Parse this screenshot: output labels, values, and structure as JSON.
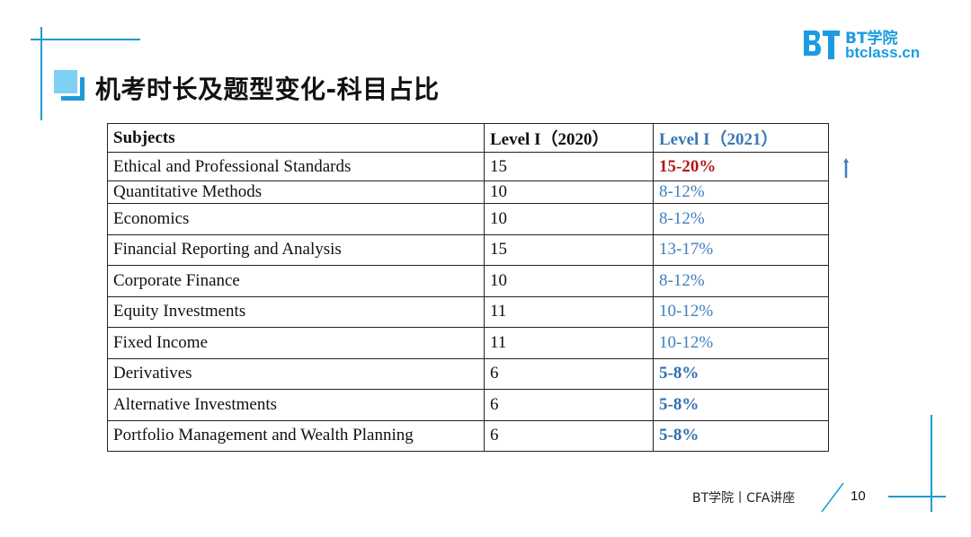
{
  "title": "机考时长及题型变化-科目占比",
  "logo": {
    "name_cn": "BT学院",
    "domain": "btclass.cn"
  },
  "table": {
    "headers": [
      "Subjects",
      "Level I（2020）",
      "Level I（2021）"
    ],
    "rows": [
      {
        "subject": "Ethical and Professional Standards",
        "y2020": "15",
        "y2021": "15-20%"
      },
      {
        "subject": "Quantitative Methods",
        "y2020": "10",
        "y2021": "8-12%"
      },
      {
        "subject": "Economics",
        "y2020": "10",
        "y2021": "8-12%"
      },
      {
        "subject": "Financial Reporting and Analysis",
        "y2020": "15",
        "y2021": "13-17%"
      },
      {
        "subject": "Corporate Finance",
        "y2020": "10",
        "y2021": "8-12%"
      },
      {
        "subject": "Equity Investments",
        "y2020": "11",
        "y2021": "10-12%"
      },
      {
        "subject": "Fixed Income",
        "y2020": "11",
        "y2021": "10-12%"
      },
      {
        "subject": "Derivatives",
        "y2020": "6",
        "y2021": "5-8%"
      },
      {
        "subject": "Alternative Investments",
        "y2020": "6",
        "y2021": "5-8%"
      },
      {
        "subject": "Portfolio Management and Wealth Planning",
        "y2020": "6",
        "y2021": "5-8%"
      }
    ]
  },
  "indicator_icon": "up-arrow-icon",
  "footer": {
    "text": "BT学院丨CFA讲座",
    "page_number": "10"
  },
  "colors": {
    "accent": "#1f9ad6",
    "increase": "#b01818",
    "new_value": "#3f7fbf"
  }
}
